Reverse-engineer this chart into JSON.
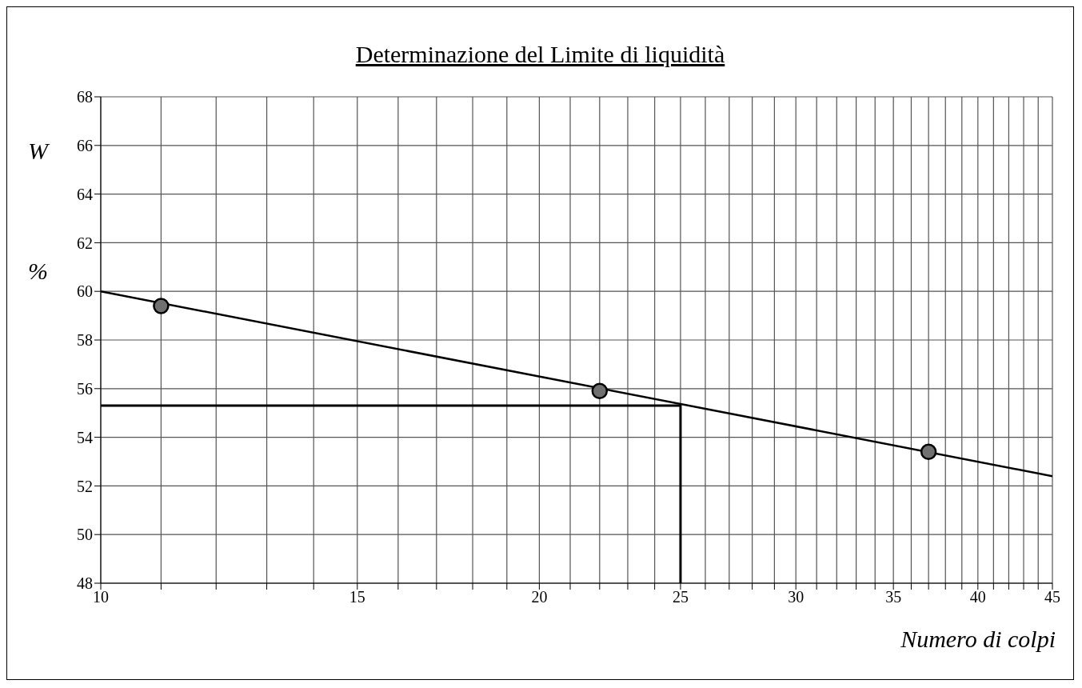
{
  "chart_data": {
    "type": "line",
    "title": "Determinazione del Limite di liquidità",
    "xlabel": "Numero di colpi",
    "ylabel": "W %",
    "log": "x",
    "grid": true,
    "xlim": [
      10,
      45
    ],
    "xticks": [
      10,
      {
        "value": 11,
        "label": null
      },
      {
        "value": 12,
        "label": null
      },
      {
        "value": 13,
        "label": null
      },
      {
        "value": 14,
        "label": null
      },
      15,
      {
        "value": 16,
        "label": null
      },
      {
        "value": 17,
        "label": null
      },
      {
        "value": 18,
        "label": null
      },
      {
        "value": 19,
        "label": null
      },
      20,
      {
        "value": 21,
        "label": null
      },
      {
        "value": 22,
        "label": null
      },
      {
        "value": 23,
        "label": null
      },
      {
        "value": 24,
        "label": null
      },
      25,
      {
        "value": 26,
        "label": null
      },
      {
        "value": 27,
        "label": null
      },
      {
        "value": 28,
        "label": null
      },
      {
        "value": 29,
        "label": null
      },
      30,
      {
        "value": 31,
        "label": null
      },
      {
        "value": 32,
        "label": null
      },
      {
        "value": 33,
        "label": null
      },
      {
        "value": 34,
        "label": null
      },
      35,
      {
        "value": 36,
        "label": null
      },
      {
        "value": 37,
        "label": null
      },
      {
        "value": 38,
        "label": null
      },
      {
        "value": 39,
        "label": null
      },
      40,
      {
        "value": 41,
        "label": null
      },
      {
        "value": 42,
        "label": null
      },
      {
        "value": 43,
        "label": null
      },
      {
        "value": 44,
        "label": null
      },
      45
    ],
    "ylim": [
      48,
      68
    ],
    "yticks": [
      48,
      50,
      52,
      54,
      56,
      58,
      60,
      62,
      64,
      66,
      68
    ],
    "series": [
      {
        "color": "#000000",
        "x": [
          10,
          45
        ],
        "values": [
          60.0,
          52.4
        ],
        "marker": "none",
        "line_style": "solid"
      },
      {
        "color": "#000000",
        "x": [
          10,
          25,
          25
        ],
        "values": [
          55.3,
          55.3,
          48
        ],
        "marker": "none",
        "line_style": "solid"
      },
      {
        "type": "scatter",
        "color": "#707070",
        "x": [
          11,
          22,
          37
        ],
        "values": [
          59.4,
          55.9,
          53.4
        ],
        "marker": "circle"
      }
    ]
  }
}
